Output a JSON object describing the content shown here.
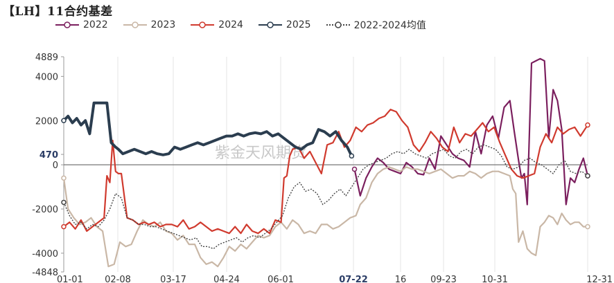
{
  "title": "【LH】11合约基差",
  "watermark": "紫金天风期货",
  "chart_data": {
    "type": "line",
    "ylim": [
      -4848,
      4889
    ],
    "yticks": [
      4889,
      4000,
      2000,
      470,
      0,
      -2000,
      -4000,
      -4848
    ],
    "ytick_labels": [
      "4889",
      "4000",
      "2000",
      "470",
      "0",
      "-2000",
      "-4000",
      "-4848"
    ],
    "x_range": [
      "01-01",
      "12-31"
    ],
    "xticks": [
      "01-01",
      "02-08",
      "03-17",
      "04-24",
      "06-01",
      "07-22",
      "16",
      "09-23",
      "10-31",
      "12-31"
    ],
    "highlight_xtick": "07-22",
    "highlight_ytick": "470",
    "grid": "vertical",
    "legend_position": "top",
    "series": [
      {
        "name": "2022",
        "color": "#7b1f5e",
        "x": [
          "07-22",
          "07-26",
          "07-30",
          "08-03",
          "08-07",
          "08-11",
          "08-15",
          "08-19",
          "08-23",
          "08-27",
          "08-31",
          "09-04",
          "09-08",
          "09-12",
          "09-16",
          "09-20",
          "09-24",
          "09-28",
          "10-02",
          "10-06",
          "10-10",
          "10-14",
          "10-18",
          "10-22",
          "10-26",
          "10-30",
          "11-03",
          "11-07",
          "11-10",
          "11-13",
          "11-15",
          "11-17",
          "11-19",
          "11-22",
          "11-25",
          "11-28",
          "12-01",
          "12-04",
          "12-07",
          "12-10",
          "12-13",
          "12-16",
          "12-19",
          "12-22",
          "12-25",
          "12-28",
          "12-31"
        ],
        "y": [
          -200,
          -1400,
          -600,
          -100,
          300,
          100,
          -200,
          -300,
          -400,
          100,
          -100,
          -400,
          -450,
          300,
          -200,
          1300,
          900,
          500,
          300,
          200,
          -100,
          1500,
          500,
          1800,
          2200,
          1200,
          2600,
          2900,
          1500,
          200,
          -600,
          -400,
          -1800,
          4600,
          4700,
          4800,
          4700,
          1200,
          3400,
          2900,
          1600,
          -1800,
          -600,
          -800,
          -200,
          300,
          -500
        ]
      },
      {
        "name": "2023",
        "color": "#c9b7a6",
        "x": [
          "01-01",
          "01-04",
          "01-08",
          "01-12",
          "01-16",
          "01-20",
          "01-24",
          "01-28",
          "02-01",
          "02-05",
          "02-09",
          "02-13",
          "02-17",
          "02-21",
          "02-25",
          "03-01",
          "03-05",
          "03-09",
          "03-13",
          "03-17",
          "03-21",
          "03-25",
          "03-29",
          "04-02",
          "04-06",
          "04-10",
          "04-14",
          "04-18",
          "04-22",
          "04-26",
          "04-30",
          "05-04",
          "05-08",
          "05-12",
          "05-16",
          "05-20",
          "05-24",
          "05-28",
          "06-01",
          "06-05",
          "06-09",
          "06-13",
          "06-17",
          "06-21",
          "06-25",
          "06-29",
          "07-03",
          "07-07",
          "07-11",
          "07-15",
          "07-19",
          "07-23",
          "07-26",
          "07-30",
          "08-03",
          "08-07",
          "08-11",
          "08-15",
          "08-19",
          "08-23",
          "08-27",
          "08-31",
          "09-04",
          "09-08",
          "09-12",
          "09-16",
          "09-20",
          "09-24",
          "09-28",
          "10-02",
          "10-06",
          "10-10",
          "10-14",
          "10-18",
          "10-22",
          "10-26",
          "10-30",
          "11-03",
          "11-07",
          "11-09",
          "11-11",
          "11-13",
          "11-16",
          "11-19",
          "11-22",
          "11-25",
          "11-28",
          "12-01",
          "12-04",
          "12-07",
          "12-10",
          "12-13",
          "12-16",
          "12-19",
          "12-22",
          "12-25",
          "12-28",
          "12-31"
        ],
        "y": [
          -600,
          -2000,
          -2400,
          -2700,
          -2600,
          -2400,
          -2800,
          -3000,
          -4600,
          -4500,
          -3500,
          -3700,
          -3600,
          -3000,
          -2500,
          -2700,
          -2800,
          -2600,
          -3000,
          -3100,
          -3400,
          -3200,
          -3600,
          -3600,
          -4200,
          -4500,
          -4400,
          -4600,
          -4200,
          -3700,
          -3900,
          -3600,
          -3800,
          -3500,
          -3200,
          -3300,
          -3200,
          -2800,
          -2600,
          -2900,
          -2500,
          -2700,
          -3100,
          -3000,
          -3100,
          -2700,
          -2700,
          -2900,
          -2800,
          -2600,
          -2400,
          -2300,
          -1800,
          -1500,
          -800,
          -400,
          -200,
          -100,
          -200,
          -300,
          -100,
          -200,
          -200,
          -300,
          -400,
          -300,
          -200,
          -400,
          -600,
          -500,
          -500,
          -300,
          -400,
          -600,
          -400,
          -300,
          -300,
          -400,
          -500,
          -1100,
          -1300,
          -3500,
          -3000,
          -3800,
          -4000,
          -4100,
          -2800,
          -2600,
          -2300,
          -2400,
          -2700,
          -2200,
          -2500,
          -2700,
          -2600,
          -2600,
          -2800,
          -2800
        ]
      },
      {
        "name": "2024",
        "color": "#d03a2e",
        "x": [
          "01-01",
          "01-05",
          "01-09",
          "01-13",
          "01-17",
          "01-21",
          "01-25",
          "01-29",
          "01-31",
          "02-02",
          "02-04",
          "02-06",
          "02-08",
          "02-10",
          "02-14",
          "02-18",
          "02-22",
          "02-26",
          "03-01",
          "03-05",
          "03-09",
          "03-13",
          "03-17",
          "03-21",
          "03-25",
          "03-29",
          "04-02",
          "04-06",
          "04-10",
          "04-14",
          "04-18",
          "04-22",
          "04-26",
          "04-30",
          "05-04",
          "05-08",
          "05-12",
          "05-16",
          "05-20",
          "05-24",
          "05-28",
          "06-01",
          "06-03",
          "06-05",
          "06-07",
          "06-09",
          "06-13",
          "06-17",
          "06-21",
          "06-25",
          "06-29",
          "07-03",
          "07-07",
          "07-11",
          "07-15",
          "07-19",
          "07-23",
          "07-27",
          "07-31",
          "08-04",
          "08-08",
          "08-12",
          "08-16",
          "08-20",
          "08-24",
          "08-28",
          "09-01",
          "09-05",
          "09-09",
          "09-13",
          "09-17",
          "09-21",
          "09-25",
          "09-29",
          "10-03",
          "10-07",
          "10-11",
          "10-15",
          "10-19",
          "10-23",
          "10-27",
          "10-31",
          "11-04",
          "11-08",
          "11-12",
          "11-16",
          "11-20",
          "11-24",
          "11-28",
          "12-02",
          "12-06",
          "12-10",
          "12-14",
          "12-18",
          "12-22",
          "12-26",
          "12-31"
        ],
        "y": [
          -2800,
          -2600,
          -2900,
          -2500,
          -3000,
          -2800,
          -2600,
          -2400,
          -500,
          -800,
          1100,
          -300,
          -400,
          -400,
          -2400,
          -2500,
          -2700,
          -2600,
          -2700,
          -2600,
          -2800,
          -2700,
          -2700,
          -2800,
          -2500,
          -2900,
          -2800,
          -2600,
          -2800,
          -3000,
          -2900,
          -3000,
          -3100,
          -2800,
          -3100,
          -2700,
          -3000,
          -3100,
          -2900,
          -3100,
          -2500,
          -2600,
          -600,
          -500,
          400,
          700,
          800,
          300,
          600,
          100,
          -400,
          900,
          1000,
          1500,
          800,
          1100,
          1700,
          1500,
          1800,
          1900,
          2100,
          2200,
          2500,
          2400,
          2000,
          1700,
          900,
          600,
          1000,
          1500,
          1200,
          800,
          600,
          1700,
          1000,
          1400,
          1300,
          1600,
          1900,
          1500,
          1700,
          1000,
          400,
          -200,
          -500,
          -600,
          -500,
          -400,
          800,
          1400,
          1000,
          1700,
          1400,
          1600,
          1700,
          1300,
          1800
        ]
      },
      {
        "name": "2025",
        "color": "#2b3d4f",
        "x": [
          "01-01",
          "01-04",
          "01-07",
          "01-10",
          "01-13",
          "01-16",
          "01-19",
          "01-22",
          "01-25",
          "01-28",
          "01-31",
          "02-03",
          "02-06",
          "02-08",
          "02-11",
          "02-15",
          "02-19",
          "02-23",
          "02-27",
          "03-03",
          "03-07",
          "03-11",
          "03-15",
          "03-19",
          "03-23",
          "03-27",
          "03-31",
          "04-04",
          "04-08",
          "04-12",
          "04-16",
          "04-20",
          "04-24",
          "04-28",
          "05-02",
          "05-06",
          "05-10",
          "05-14",
          "05-18",
          "05-22",
          "05-26",
          "05-30",
          "06-03",
          "06-07",
          "06-11",
          "06-15",
          "06-19",
          "06-23",
          "06-27",
          "07-01",
          "07-05",
          "07-09",
          "07-13",
          "07-17",
          "07-20"
        ],
        "y": [
          2000,
          2200,
          1900,
          2100,
          1800,
          2000,
          1400,
          2800,
          2800,
          2800,
          2800,
          1000,
          800,
          700,
          500,
          600,
          700,
          600,
          500,
          600,
          500,
          450,
          500,
          800,
          700,
          800,
          900,
          1000,
          900,
          1000,
          1100,
          1200,
          1300,
          1300,
          1400,
          1300,
          1400,
          1450,
          1400,
          1500,
          1300,
          1400,
          1200,
          1000,
          800,
          700,
          900,
          1000,
          1600,
          1500,
          1300,
          1500,
          1100,
          800,
          400
        ]
      },
      {
        "name": "2022-2024均值",
        "color": "#444444",
        "dashed": true,
        "x": [
          "01-01",
          "01-05",
          "01-09",
          "01-13",
          "01-17",
          "01-21",
          "01-25",
          "01-29",
          "02-02",
          "02-06",
          "02-10",
          "02-14",
          "02-18",
          "02-22",
          "02-26",
          "03-02",
          "03-06",
          "03-10",
          "03-14",
          "03-18",
          "03-22",
          "03-26",
          "03-30",
          "04-03",
          "04-07",
          "04-11",
          "04-15",
          "04-19",
          "04-23",
          "04-27",
          "05-01",
          "05-05",
          "05-09",
          "05-13",
          "05-17",
          "05-21",
          "05-25",
          "05-29",
          "06-02",
          "06-06",
          "06-10",
          "06-14",
          "06-18",
          "06-22",
          "06-26",
          "06-30",
          "07-04",
          "07-08",
          "07-12",
          "07-16",
          "07-20",
          "07-24",
          "07-28",
          "08-01",
          "08-05",
          "08-09",
          "08-13",
          "08-17",
          "08-21",
          "08-25",
          "08-29",
          "09-02",
          "09-06",
          "09-10",
          "09-14",
          "09-18",
          "09-22",
          "09-26",
          "09-30",
          "10-04",
          "10-08",
          "10-12",
          "10-16",
          "10-20",
          "10-24",
          "10-28",
          "11-01",
          "11-05",
          "11-09",
          "11-13",
          "11-17",
          "11-21",
          "11-25",
          "11-29",
          "12-03",
          "12-07",
          "12-11",
          "12-15",
          "12-19",
          "12-23",
          "12-27",
          "12-31"
        ],
        "y": [
          -1700,
          -2300,
          -2700,
          -2600,
          -2900,
          -2700,
          -2800,
          -2500,
          -2000,
          -1300,
          -1500,
          -2400,
          -2500,
          -2700,
          -2700,
          -2800,
          -2800,
          -2900,
          -3000,
          -3100,
          -3200,
          -3300,
          -3400,
          -3300,
          -3700,
          -3700,
          -3800,
          -3600,
          -3500,
          -3400,
          -3300,
          -3500,
          -3300,
          -3200,
          -3300,
          -3100,
          -2900,
          -2600,
          -2300,
          -1500,
          -1000,
          -800,
          -1200,
          -1100,
          -1300,
          -1800,
          -1600,
          -1300,
          -1100,
          -1400,
          -1000,
          -600,
          -200,
          0,
          100,
          200,
          300,
          500,
          600,
          500,
          700,
          500,
          400,
          300,
          500,
          600,
          700,
          400,
          300,
          600,
          700,
          500,
          800,
          900,
          800,
          700,
          400,
          -100,
          -200,
          -100,
          200,
          300,
          100,
          0,
          -200,
          -400,
          0,
          200,
          -300,
          -400,
          -300,
          -500
        ]
      }
    ]
  }
}
